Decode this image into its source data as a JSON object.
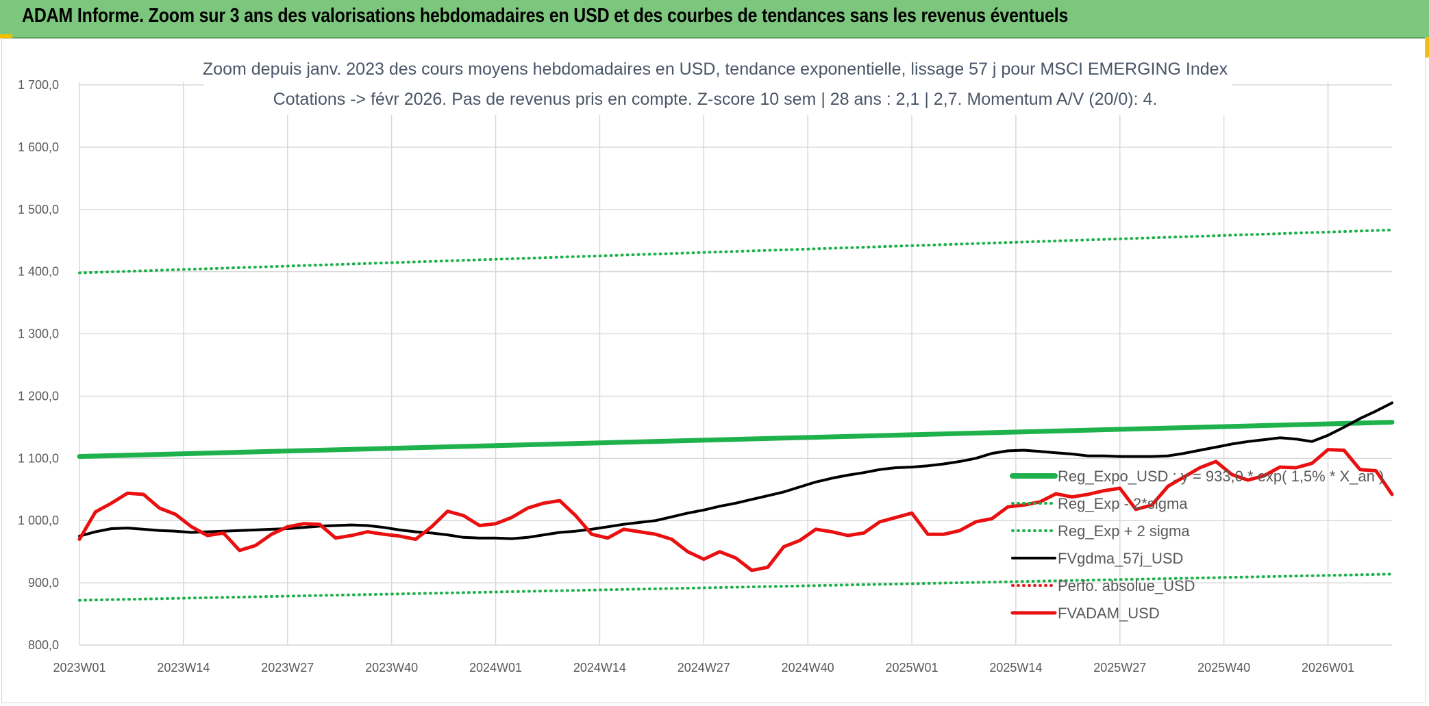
{
  "header": {
    "banner_title": "ADAM Informe. Zoom sur 3 ans des valorisations hebdomadaires en USD et des courbes de tendances sans les revenus éventuels"
  },
  "colors": {
    "banner_bg": "#7dc67d",
    "reg_expo": "#1fb14c",
    "sigma": "#1fb14c",
    "fvgdma": "#000000",
    "perfo": "#e02020",
    "fvadam": "#e81010",
    "grid": "#d9d9d9"
  },
  "chart_data": {
    "type": "line",
    "title_lines": [
      "Zoom depuis janv. 2023 des cours moyens hebdomadaires en USD, tendance exponentielle, lissage 57 j pour MSCI EMERGING Index",
      "Cotations -> févr 2026. Pas de revenus pris en compte. Z-score 10 sem | 28 ans : 2,1 | 2,7. Momentum A/V (20/0): 4."
    ],
    "x_range": [
      0,
      164
    ],
    "x_ticks": [
      {
        "i": 0,
        "label": "2023W01"
      },
      {
        "i": 13,
        "label": "2023W14"
      },
      {
        "i": 26,
        "label": "2023W27"
      },
      {
        "i": 39,
        "label": "2023W40"
      },
      {
        "i": 52,
        "label": "2024W01"
      },
      {
        "i": 65,
        "label": "2024W14"
      },
      {
        "i": 78,
        "label": "2024W27"
      },
      {
        "i": 91,
        "label": "2024W40"
      },
      {
        "i": 104,
        "label": "2025W01"
      },
      {
        "i": 117,
        "label": "2025W14"
      },
      {
        "i": 130,
        "label": "2025W27"
      },
      {
        "i": 143,
        "label": "2025W40"
      },
      {
        "i": 156,
        "label": "2026W01"
      }
    ],
    "ylim": [
      800,
      1700
    ],
    "y_ticks": [
      {
        "v": 800,
        "label": "800,0"
      },
      {
        "v": 900,
        "label": "900,0"
      },
      {
        "v": 1000,
        "label": "1 000,0"
      },
      {
        "v": 1100,
        "label": "1 100,0"
      },
      {
        "v": 1200,
        "label": "1 200,0"
      },
      {
        "v": 1300,
        "label": "1 300,0"
      },
      {
        "v": 1400,
        "label": "1 400,0"
      },
      {
        "v": 1500,
        "label": "1 500,0"
      },
      {
        "v": 1600,
        "label": "1 600,0"
      },
      {
        "v": 1700,
        "label": "1 700,0"
      }
    ],
    "grid": true,
    "legend_position": "bottom-right",
    "series": [
      {
        "name": "Reg_Expo_USD : y = 933,0 * exp( 1,5% *  X_an )",
        "style": "solid-thick",
        "points": [
          [
            0,
            1103
          ],
          [
            164,
            1158
          ]
        ]
      },
      {
        "name": "Reg_Exp - 2*sigma",
        "style": "dotted",
        "points": [
          [
            0,
            872
          ],
          [
            164,
            914
          ]
        ]
      },
      {
        "name": "Reg_Exp + 2 sigma",
        "style": "dotted",
        "points": [
          [
            0,
            1398
          ],
          [
            164,
            1467
          ]
        ]
      },
      {
        "name": "FVgdma_57j_USD",
        "style": "solid",
        "points": [
          [
            0,
            975
          ],
          [
            2,
            982
          ],
          [
            4,
            987
          ],
          [
            6,
            988
          ],
          [
            8,
            986
          ],
          [
            10,
            984
          ],
          [
            12,
            983
          ],
          [
            14,
            981
          ],
          [
            16,
            982
          ],
          [
            18,
            983
          ],
          [
            20,
            984
          ],
          [
            22,
            985
          ],
          [
            24,
            986
          ],
          [
            26,
            987
          ],
          [
            28,
            989
          ],
          [
            30,
            991
          ],
          [
            32,
            992
          ],
          [
            34,
            993
          ],
          [
            36,
            992
          ],
          [
            38,
            989
          ],
          [
            40,
            985
          ],
          [
            42,
            982
          ],
          [
            44,
            980
          ],
          [
            46,
            977
          ],
          [
            48,
            973
          ],
          [
            50,
            972
          ],
          [
            52,
            972
          ],
          [
            54,
            971
          ],
          [
            56,
            973
          ],
          [
            58,
            977
          ],
          [
            60,
            981
          ],
          [
            62,
            983
          ],
          [
            64,
            986
          ],
          [
            66,
            990
          ],
          [
            68,
            994
          ],
          [
            70,
            997
          ],
          [
            72,
            1000
          ],
          [
            74,
            1006
          ],
          [
            76,
            1012
          ],
          [
            78,
            1017
          ],
          [
            80,
            1023
          ],
          [
            82,
            1028
          ],
          [
            84,
            1034
          ],
          [
            86,
            1040
          ],
          [
            88,
            1046
          ],
          [
            90,
            1054
          ],
          [
            92,
            1062
          ],
          [
            94,
            1068
          ],
          [
            96,
            1073
          ],
          [
            98,
            1077
          ],
          [
            100,
            1082
          ],
          [
            102,
            1085
          ],
          [
            104,
            1086
          ],
          [
            106,
            1088
          ],
          [
            108,
            1091
          ],
          [
            110,
            1095
          ],
          [
            112,
            1100
          ],
          [
            114,
            1108
          ],
          [
            116,
            1112
          ],
          [
            118,
            1113
          ],
          [
            120,
            1111
          ],
          [
            122,
            1109
          ],
          [
            124,
            1107
          ],
          [
            126,
            1104
          ],
          [
            128,
            1104
          ],
          [
            130,
            1103
          ],
          [
            132,
            1103
          ],
          [
            134,
            1103
          ],
          [
            136,
            1104
          ],
          [
            138,
            1108
          ],
          [
            140,
            1113
          ],
          [
            142,
            1118
          ],
          [
            144,
            1123
          ],
          [
            146,
            1127
          ],
          [
            148,
            1130
          ],
          [
            150,
            1133
          ],
          [
            152,
            1131
          ],
          [
            154,
            1127
          ],
          [
            156,
            1137
          ],
          [
            158,
            1150
          ],
          [
            160,
            1164
          ],
          [
            162,
            1176
          ],
          [
            164,
            1189
          ]
        ]
      },
      {
        "name": "Perfo. absolue_USD",
        "style": "dotted-red",
        "points": []
      },
      {
        "name": "FVADAM_USD",
        "style": "solid-red",
        "points": [
          [
            0,
            970
          ],
          [
            2,
            1014
          ],
          [
            4,
            1028
          ],
          [
            6,
            1044
          ],
          [
            8,
            1042
          ],
          [
            10,
            1020
          ],
          [
            12,
            1010
          ],
          [
            14,
            990
          ],
          [
            16,
            976
          ],
          [
            18,
            980
          ],
          [
            20,
            952
          ],
          [
            22,
            960
          ],
          [
            24,
            978
          ],
          [
            26,
            990
          ],
          [
            28,
            995
          ],
          [
            30,
            994
          ],
          [
            32,
            972
          ],
          [
            34,
            976
          ],
          [
            36,
            982
          ],
          [
            38,
            978
          ],
          [
            40,
            975
          ],
          [
            42,
            970
          ],
          [
            44,
            990
          ],
          [
            46,
            1015
          ],
          [
            48,
            1008
          ],
          [
            50,
            992
          ],
          [
            52,
            995
          ],
          [
            54,
            1005
          ],
          [
            56,
            1020
          ],
          [
            58,
            1028
          ],
          [
            60,
            1032
          ],
          [
            62,
            1008
          ],
          [
            64,
            978
          ],
          [
            66,
            972
          ],
          [
            68,
            986
          ],
          [
            70,
            982
          ],
          [
            72,
            978
          ],
          [
            74,
            970
          ],
          [
            76,
            950
          ],
          [
            78,
            938
          ],
          [
            80,
            950
          ],
          [
            82,
            940
          ],
          [
            84,
            920
          ],
          [
            86,
            925
          ],
          [
            88,
            958
          ],
          [
            90,
            968
          ],
          [
            92,
            986
          ],
          [
            94,
            982
          ],
          [
            96,
            976
          ],
          [
            98,
            980
          ],
          [
            100,
            998
          ],
          [
            102,
            1005
          ],
          [
            104,
            1012
          ],
          [
            106,
            978
          ],
          [
            108,
            978
          ],
          [
            110,
            984
          ],
          [
            112,
            998
          ],
          [
            114,
            1003
          ],
          [
            116,
            1022
          ],
          [
            118,
            1025
          ],
          [
            120,
            1030
          ],
          [
            122,
            1043
          ],
          [
            124,
            1038
          ],
          [
            126,
            1042
          ],
          [
            128,
            1048
          ],
          [
            130,
            1052
          ],
          [
            132,
            1018
          ],
          [
            134,
            1025
          ],
          [
            136,
            1055
          ],
          [
            138,
            1070
          ],
          [
            140,
            1085
          ],
          [
            142,
            1095
          ],
          [
            144,
            1074
          ],
          [
            146,
            1065
          ],
          [
            148,
            1072
          ],
          [
            150,
            1086
          ],
          [
            152,
            1085
          ],
          [
            154,
            1092
          ],
          [
            156,
            1114
          ],
          [
            158,
            1113
          ],
          [
            160,
            1082
          ],
          [
            162,
            1080
          ],
          [
            164,
            1042
          ]
        ]
      }
    ]
  },
  "legend": [
    {
      "label": "Reg_Expo_USD : y = 933,0 * exp( 1,5% *  X_an )",
      "style": "solid-thick",
      "color": "#1fb14c"
    },
    {
      "label": "Reg_Exp - 2*sigma",
      "style": "dotted",
      "color": "#1fb14c"
    },
    {
      "label": "Reg_Exp + 2 sigma",
      "style": "dotted",
      "color": "#1fb14c"
    },
    {
      "label": "FVgdma_57j_USD",
      "style": "solid",
      "color": "#000000"
    },
    {
      "label": "Perfo. absolue_USD",
      "style": "dotted",
      "color": "#e02020"
    },
    {
      "label": "FVADAM_USD",
      "style": "solid-thick",
      "color": "#e81010"
    }
  ]
}
